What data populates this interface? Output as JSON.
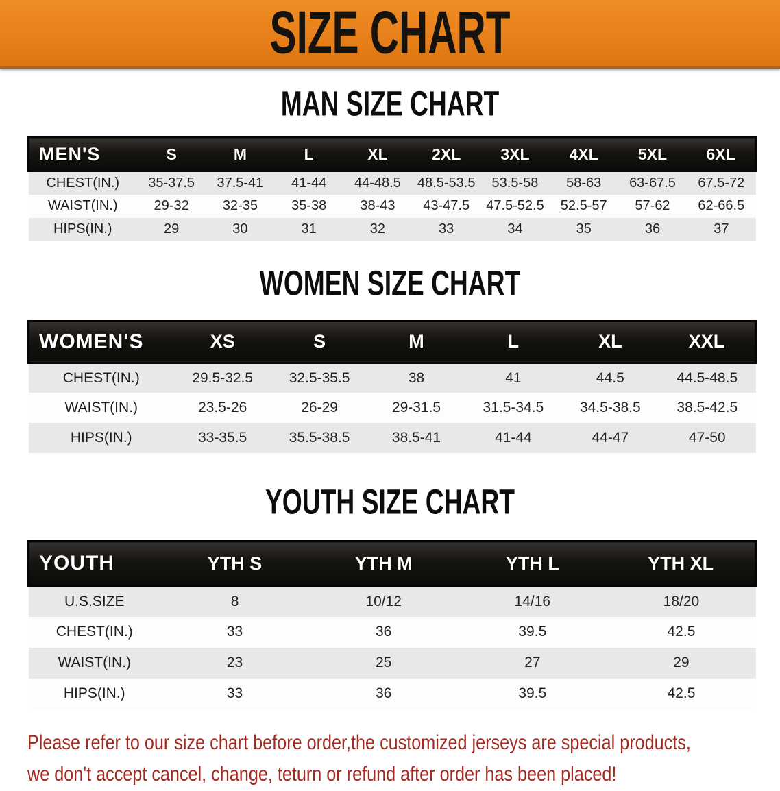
{
  "colors": {
    "banner": "#e8801b",
    "band": "#16140f",
    "stripe": "#e8e8e8",
    "rowlight": "#fdfdfd",
    "red": "#a32a20",
    "ink": "#0d0d0d"
  },
  "banner": {
    "title": "SIZE CHART"
  },
  "sections": {
    "mens": {
      "title": "MAN SIZE CHART",
      "table": {
        "label": "MEN'S",
        "columns": [
          "S",
          "M",
          "L",
          "XL",
          "2XL",
          "3XL",
          "4XL",
          "5XL",
          "6XL"
        ],
        "rows": [
          {
            "label": "CHEST(IN.)",
            "values": [
              "35-37.5",
              "37.5-41",
              "41-44",
              "44-48.5",
              "48.5-53.5",
              "53.5-58",
              "58-63",
              "63-67.5",
              "67.5-72"
            ]
          },
          {
            "label": "WAIST(IN.)",
            "values": [
              "29-32",
              "32-35",
              "35-38",
              "38-43",
              "43-47.5",
              "47.5-52.5",
              "52.5-57",
              "57-62",
              "62-66.5"
            ]
          },
          {
            "label": "HIPS(IN.)",
            "values": [
              "29",
              "30",
              "31",
              "32",
              "33",
              "34",
              "35",
              "36",
              "37"
            ]
          }
        ]
      }
    },
    "womens": {
      "title": "WOMEN SIZE CHART",
      "table": {
        "label": "WOMEN'S",
        "columns": [
          "XS",
          "S",
          "M",
          "L",
          "XL",
          "XXL"
        ],
        "rows": [
          {
            "label": "CHEST(IN.)",
            "values": [
              "29.5-32.5",
              "32.5-35.5",
              "38",
              "41",
              "44.5",
              "44.5-48.5"
            ]
          },
          {
            "label": "WAIST(IN.)",
            "values": [
              "23.5-26",
              "26-29",
              "29-31.5",
              "31.5-34.5",
              "34.5-38.5",
              "38.5-42.5"
            ]
          },
          {
            "label": "HIPS(IN.)",
            "values": [
              "33-35.5",
              "35.5-38.5",
              "38.5-41",
              "41-44",
              "44-47",
              "47-50"
            ]
          }
        ]
      }
    },
    "youth": {
      "title": "YOUTH SIZE CHART",
      "table": {
        "label": "YOUTH",
        "columns": [
          "YTH S",
          "YTH M",
          "YTH L",
          "YTH XL"
        ],
        "rows": [
          {
            "label": "U.S.SIZE",
            "values": [
              "8",
              "10/12",
              "14/16",
              "18/20"
            ]
          },
          {
            "label": "CHEST(IN.)",
            "values": [
              "33",
              "36",
              "39.5",
              "42.5"
            ]
          },
          {
            "label": "WAIST(IN.)",
            "values": [
              "23",
              "25",
              "27",
              "29"
            ]
          },
          {
            "label": "HIPS(IN.)",
            "values": [
              "33",
              "36",
              "39.5",
              "42.5"
            ]
          }
        ]
      }
    }
  },
  "disclaimer": {
    "line1": "Please refer to our size chart before order,the customized jerseys are special products,",
    "line2": "we don't accept cancel, change, teturn or refund after order has been placed!"
  }
}
